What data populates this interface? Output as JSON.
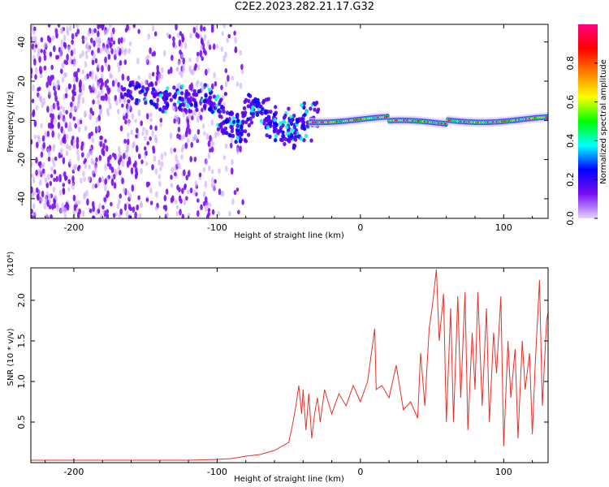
{
  "title": "C2E2.2023.282.21.17.G32",
  "colors": {
    "snr_line": "#e8302a",
    "background": "#ffffff",
    "axis": "#000000"
  },
  "top_panel": {
    "type": "heatmap",
    "xlabel": "Height of straight line (km)",
    "ylabel": "Frequency (Hz)",
    "xlim": [
      -230,
      131
    ],
    "ylim": [
      -50,
      49
    ],
    "xticks": [
      -200,
      -100,
      0,
      100
    ],
    "yticks": [
      -40,
      -20,
      0,
      20,
      40
    ],
    "colorbar": {
      "label": "Normalized spectral amplitude",
      "range": [
        0.0,
        1.0
      ],
      "ticks": [
        "0.0",
        "0.2",
        "0.4",
        "0.6",
        "0.8"
      ],
      "palette": [
        "#e6d2ff",
        "#7a10f0",
        "#0000ff",
        "#00ffff",
        "#00ff00",
        "#ffff00",
        "#ff8000",
        "#ff0000",
        "#ff0080"
      ]
    }
  },
  "chart_data": {
    "type": "line",
    "title": "C2E2.2023.282.21.17.G32",
    "xlabel": "Height of straight line (km)",
    "ylabel": "SNR (10 * v/v)",
    "y_multiplier": "(x10⁴)",
    "xlim": [
      -230,
      131
    ],
    "ylim": [
      0,
      2.4
    ],
    "xticks": [
      -200,
      -100,
      0,
      100
    ],
    "yticks": [
      0.5,
      1.0,
      1.5,
      2.0
    ],
    "ytick_labels": [
      "0.5",
      "1.0",
      "1.5",
      "2.0"
    ],
    "series": [
      {
        "x": [
          -230,
          -200,
          -150,
          -120,
          -100,
          -90,
          -80,
          -70,
          -60,
          -55,
          -50,
          -47,
          -45,
          -43,
          -41,
          -40,
          -38,
          -36,
          -34,
          -32,
          -30,
          -28,
          -25,
          -20,
          -15,
          -10,
          -5,
          0,
          5,
          10,
          11,
          15,
          20,
          25,
          30,
          35,
          40,
          42,
          45,
          48,
          50,
          53,
          55,
          58,
          60,
          63,
          65,
          68,
          70,
          73,
          75,
          78,
          80,
          82,
          85,
          88,
          90,
          93,
          95,
          98,
          100,
          103,
          105,
          108,
          110,
          113,
          115,
          118,
          120,
          122,
          125,
          127,
          130,
          131
        ],
        "y": [
          0.03,
          0.03,
          0.03,
          0.03,
          0.04,
          0.05,
          0.08,
          0.1,
          0.15,
          0.2,
          0.25,
          0.5,
          0.7,
          0.95,
          0.6,
          0.9,
          0.4,
          0.85,
          0.3,
          0.6,
          0.8,
          0.5,
          0.9,
          0.6,
          0.85,
          0.7,
          0.95,
          0.75,
          1.0,
          1.65,
          0.9,
          0.95,
          0.8,
          1.2,
          0.65,
          0.75,
          0.55,
          1.35,
          0.7,
          1.65,
          1.9,
          2.38,
          1.5,
          2.08,
          0.5,
          1.9,
          0.5,
          2.05,
          0.8,
          2.1,
          0.4,
          1.6,
          0.9,
          2.1,
          0.7,
          1.9,
          0.5,
          1.6,
          1.1,
          2.05,
          0.2,
          1.5,
          0.8,
          1.4,
          0.3,
          1.5,
          0.9,
          1.35,
          0.35,
          1.2,
          2.25,
          0.7,
          1.75,
          1.85
        ]
      }
    ],
    "grid": false,
    "legend": "none"
  }
}
